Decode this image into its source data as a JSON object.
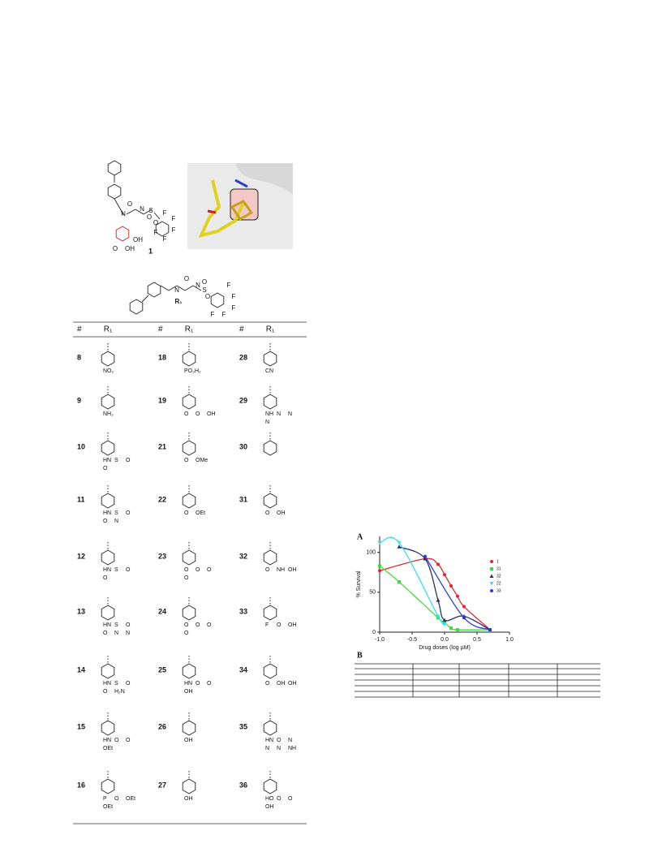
{
  "figure1": {
    "compound_label": "1",
    "atoms": [
      "N",
      "O",
      "N",
      "S",
      "O",
      "O",
      "F",
      "F",
      "F",
      "F",
      "F",
      "OH",
      "O",
      "OH"
    ]
  },
  "core": {
    "atoms": [
      "O",
      "N",
      "N",
      "S",
      "O",
      "O",
      "F",
      "F",
      "F",
      "F",
      "F",
      "R₁"
    ]
  },
  "table": {
    "headers": [
      "#",
      "R₁",
      "#",
      "R₁",
      "#",
      "R₁"
    ],
    "rows": [
      [
        {
          "id": "8",
          "atoms": [
            "NO₂"
          ]
        },
        {
          "id": "18",
          "atoms": [
            "PO₃H₂"
          ]
        },
        {
          "id": "28",
          "atoms": [
            "CN"
          ]
        }
      ],
      [
        {
          "id": "9",
          "atoms": [
            "NH₂"
          ]
        },
        {
          "id": "19",
          "atoms": [
            "O",
            "O",
            "OH"
          ]
        },
        {
          "id": "29",
          "atoms": [
            "NH",
            "N",
            "N",
            "N"
          ]
        }
      ],
      [
        {
          "id": "10",
          "atoms": [
            "HN",
            "S",
            "O",
            "O"
          ]
        },
        {
          "id": "21",
          "atoms": [
            "O",
            "OMe"
          ]
        },
        {
          "id": "30",
          "atoms": []
        }
      ],
      [
        {
          "id": "11",
          "atoms": [
            "HN",
            "S",
            "O",
            "O",
            "N"
          ]
        },
        {
          "id": "22",
          "atoms": [
            "O",
            "OEt"
          ]
        },
        {
          "id": "31",
          "atoms": [
            "O",
            "OH"
          ]
        }
      ],
      [
        {
          "id": "12",
          "atoms": [
            "HN",
            "S",
            "O",
            "O"
          ]
        },
        {
          "id": "23",
          "atoms": [
            "O",
            "O",
            "O",
            "O"
          ]
        },
        {
          "id": "32",
          "atoms": [
            "O",
            "NH",
            "OH"
          ]
        }
      ],
      [
        {
          "id": "13",
          "atoms": [
            "HN",
            "S",
            "O",
            "O",
            "N",
            "N"
          ]
        },
        {
          "id": "24",
          "atoms": [
            "O",
            "O",
            "O",
            "O"
          ]
        },
        {
          "id": "33",
          "atoms": [
            "F",
            "O",
            "OH"
          ]
        }
      ],
      [
        {
          "id": "14",
          "atoms": [
            "HN",
            "S",
            "O",
            "O",
            "H₂N"
          ]
        },
        {
          "id": "25",
          "atoms": [
            "HN",
            "O",
            "O",
            "OH"
          ]
        },
        {
          "id": "34",
          "atoms": [
            "O",
            "OH",
            "OH"
          ]
        }
      ],
      [
        {
          "id": "15",
          "atoms": [
            "HN",
            "O",
            "O",
            "OEt"
          ]
        },
        {
          "id": "26",
          "atoms": [
            "OH"
          ]
        },
        {
          "id": "35",
          "atoms": [
            "HN",
            "O",
            "N",
            "N",
            "N",
            "NH"
          ]
        }
      ],
      [
        {
          "id": "16",
          "atoms": [
            "P",
            "O",
            "OEt",
            "OEt"
          ]
        },
        {
          "id": "27",
          "atoms": [
            "OH"
          ]
        },
        {
          "id": "36",
          "atoms": [
            "HO",
            "O",
            "O",
            "OH"
          ]
        }
      ]
    ]
  },
  "chart_data": {
    "type": "line",
    "panel_labels": [
      "A",
      "B"
    ],
    "x_label": "Drug doses (log µM)",
    "y_label": "% Survival",
    "x": [
      -1.0,
      -0.7,
      -0.3,
      -0.1,
      0.0,
      0.1,
      0.2,
      0.3,
      0.7
    ],
    "series": [
      {
        "name": "1",
        "color": "#e0262c",
        "marker": "circle",
        "values": [
          77,
          null,
          92,
          85,
          72,
          58,
          45,
          32,
          3
        ]
      },
      {
        "name": "31",
        "color": "#3ddc3d",
        "marker": "square",
        "values": [
          83,
          63,
          null,
          18,
          12,
          5,
          3,
          null,
          3
        ]
      },
      {
        "name": "32",
        "color": "#27306b",
        "marker": "triangle",
        "values": [
          null,
          107,
          92,
          40,
          15,
          null,
          null,
          20,
          3
        ]
      },
      {
        "name": "22",
        "color": "#30e0f0",
        "marker": "triangle-down",
        "values": [
          112,
          112,
          null,
          20,
          10,
          null,
          null,
          null,
          null
        ]
      },
      {
        "name": "33",
        "color": "#2b3bd6",
        "marker": "circle",
        "values": [
          null,
          null,
          95,
          null,
          null,
          null,
          null,
          18,
          3
        ]
      }
    ],
    "xlim": [
      -1.0,
      1.0
    ],
    "xticks": [
      {
        "value": -1.0,
        "label": "-1.0"
      },
      {
        "value": -0.5,
        "label": "-0.5"
      },
      {
        "value": 0.0,
        "label": "0.0"
      },
      {
        "value": 0.5,
        "label": "0.5"
      },
      {
        "value": 1.0,
        "label": "1.0"
      }
    ],
    "ylim": [
      0,
      120
    ],
    "yticks": [
      0,
      50,
      100
    ],
    "legend": "upper right"
  }
}
